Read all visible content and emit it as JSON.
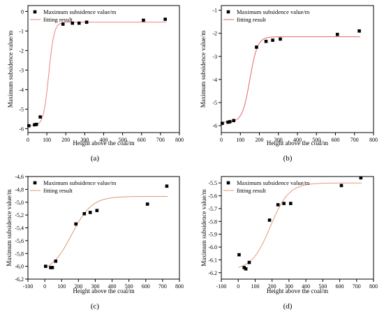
{
  "chart_data": [
    {
      "id": "a",
      "type": "scatter",
      "panel_label": "(a)",
      "xlabel": "Height above the coal/m",
      "ylabel": "Maximum subsidence value/m",
      "xlim": [
        0,
        800
      ],
      "ylim": [
        -6.2,
        0.3
      ],
      "xticks": [
        0,
        100,
        200,
        300,
        400,
        500,
        600,
        700,
        800
      ],
      "yticks": [
        0,
        -1,
        -2,
        -3,
        -4,
        -5,
        -6
      ],
      "ytick_labels": [
        "0",
        "-1",
        "-2",
        "-3",
        "-4",
        "-5",
        "-6"
      ],
      "legend": {
        "position": "top-left",
        "scatter_label": "Maximum subsidence value/m",
        "fit_label": "fitting result"
      },
      "points": [
        [
          5,
          -5.85
        ],
        [
          35,
          -5.8
        ],
        [
          45,
          -5.78
        ],
        [
          65,
          -5.4
        ],
        [
          185,
          -0.65
        ],
        [
          235,
          -0.6
        ],
        [
          270,
          -0.6
        ],
        [
          310,
          -0.55
        ],
        [
          610,
          -0.45
        ],
        [
          725,
          -0.4
        ]
      ],
      "fit": {
        "A1": -5.85,
        "A2": -0.55,
        "x0": 110,
        "dx": 14,
        "xmin": 0,
        "xmax": 730
      }
    },
    {
      "id": "b",
      "type": "scatter",
      "panel_label": "(b)",
      "xlabel": "Height above the coal/m",
      "ylabel": "Maximum subsidence value/m",
      "xlim": [
        0,
        800
      ],
      "ylim": [
        -6.3,
        -0.8
      ],
      "xticks": [
        0,
        100,
        200,
        300,
        400,
        500,
        600,
        700,
        800
      ],
      "yticks": [
        -1,
        -2,
        -3,
        -4,
        -5,
        -6
      ],
      "ytick_labels": [
        "-1",
        "-2",
        "-3",
        "-4",
        "-5",
        "-6"
      ],
      "legend": {
        "position": "top-left",
        "scatter_label": "Maximum subsidence value/m",
        "fit_label": "fitting result"
      },
      "points": [
        [
          5,
          -5.9
        ],
        [
          35,
          -5.85
        ],
        [
          45,
          -5.83
        ],
        [
          65,
          -5.78
        ],
        [
          185,
          -2.6
        ],
        [
          235,
          -2.35
        ],
        [
          270,
          -2.3
        ],
        [
          310,
          -2.25
        ],
        [
          610,
          -2.05
        ],
        [
          725,
          -1.9
        ]
      ],
      "fit": {
        "A1": -5.85,
        "A2": -2.15,
        "x0": 150,
        "dx": 20,
        "xmin": 0,
        "xmax": 730
      }
    },
    {
      "id": "c",
      "type": "scatter",
      "panel_label": "(c)",
      "xlabel": "Height above the coal/m",
      "ylabel": "Maximum subsidence value/m",
      "xlim": [
        -100,
        800
      ],
      "ylim": [
        -6.2,
        -4.6
      ],
      "xticks": [
        -100,
        0,
        100,
        200,
        300,
        400,
        500,
        600,
        700,
        800
      ],
      "yticks": [
        -4.6,
        -4.8,
        -5.0,
        -5.2,
        -5.4,
        -5.6,
        -5.8,
        -6.0,
        -6.2
      ],
      "ytick_labels": [
        "-4,6",
        "-4,8",
        "-5,0",
        "-5,2",
        "-5,4",
        "-5,6",
        "-5,8",
        "-6,0",
        "-6,2"
      ],
      "legend": {
        "position": "top-left",
        "scatter_label": "Maximum subsidence value/m",
        "fit_label": "fitting result"
      },
      "points": [
        [
          5,
          -6.0
        ],
        [
          35,
          -6.02
        ],
        [
          45,
          -6.02
        ],
        [
          65,
          -5.92
        ],
        [
          185,
          -5.34
        ],
        [
          235,
          -5.18
        ],
        [
          270,
          -5.16
        ],
        [
          310,
          -5.13
        ],
        [
          610,
          -5.03
        ],
        [
          725,
          -4.75
        ]
      ],
      "fit": {
        "A1": -6.1,
        "A2": -4.91,
        "x0": 160,
        "dx": 60,
        "xmin": 0,
        "xmax": 730
      }
    },
    {
      "id": "d",
      "type": "scatter",
      "panel_label": "(d)",
      "xlabel": "Height above the coal/m",
      "ylabel": "Maximum subsidence value/m",
      "xlim": [
        -100,
        800
      ],
      "ylim": [
        -6.25,
        -5.45
      ],
      "xticks": [
        -100,
        0,
        100,
        200,
        300,
        400,
        500,
        600,
        700,
        800
      ],
      "yticks": [
        -5.5,
        -5.6,
        -5.7,
        -5.8,
        -5.9,
        -6.0,
        -6.1,
        -6.2
      ],
      "ytick_labels": [
        "-5.5",
        "-5.6",
        "-5.7",
        "-5.8",
        "-5.9",
        "-6.0",
        "-6.1",
        "-6.2"
      ],
      "legend": {
        "position": "top-left",
        "scatter_label": "Maximum subsidence value/m",
        "fit_label": "fitting result"
      },
      "points": [
        [
          5,
          -6.06
        ],
        [
          35,
          -6.16
        ],
        [
          45,
          -6.17
        ],
        [
          65,
          -6.12
        ],
        [
          185,
          -5.79
        ],
        [
          235,
          -5.67
        ],
        [
          270,
          -5.66
        ],
        [
          310,
          -5.66
        ],
        [
          610,
          -5.52
        ],
        [
          725,
          -5.46
        ]
      ],
      "fit": {
        "A1": -6.18,
        "A2": -5.5,
        "x0": 190,
        "dx": 55,
        "xmin": 0,
        "xmax": 730
      }
    }
  ]
}
